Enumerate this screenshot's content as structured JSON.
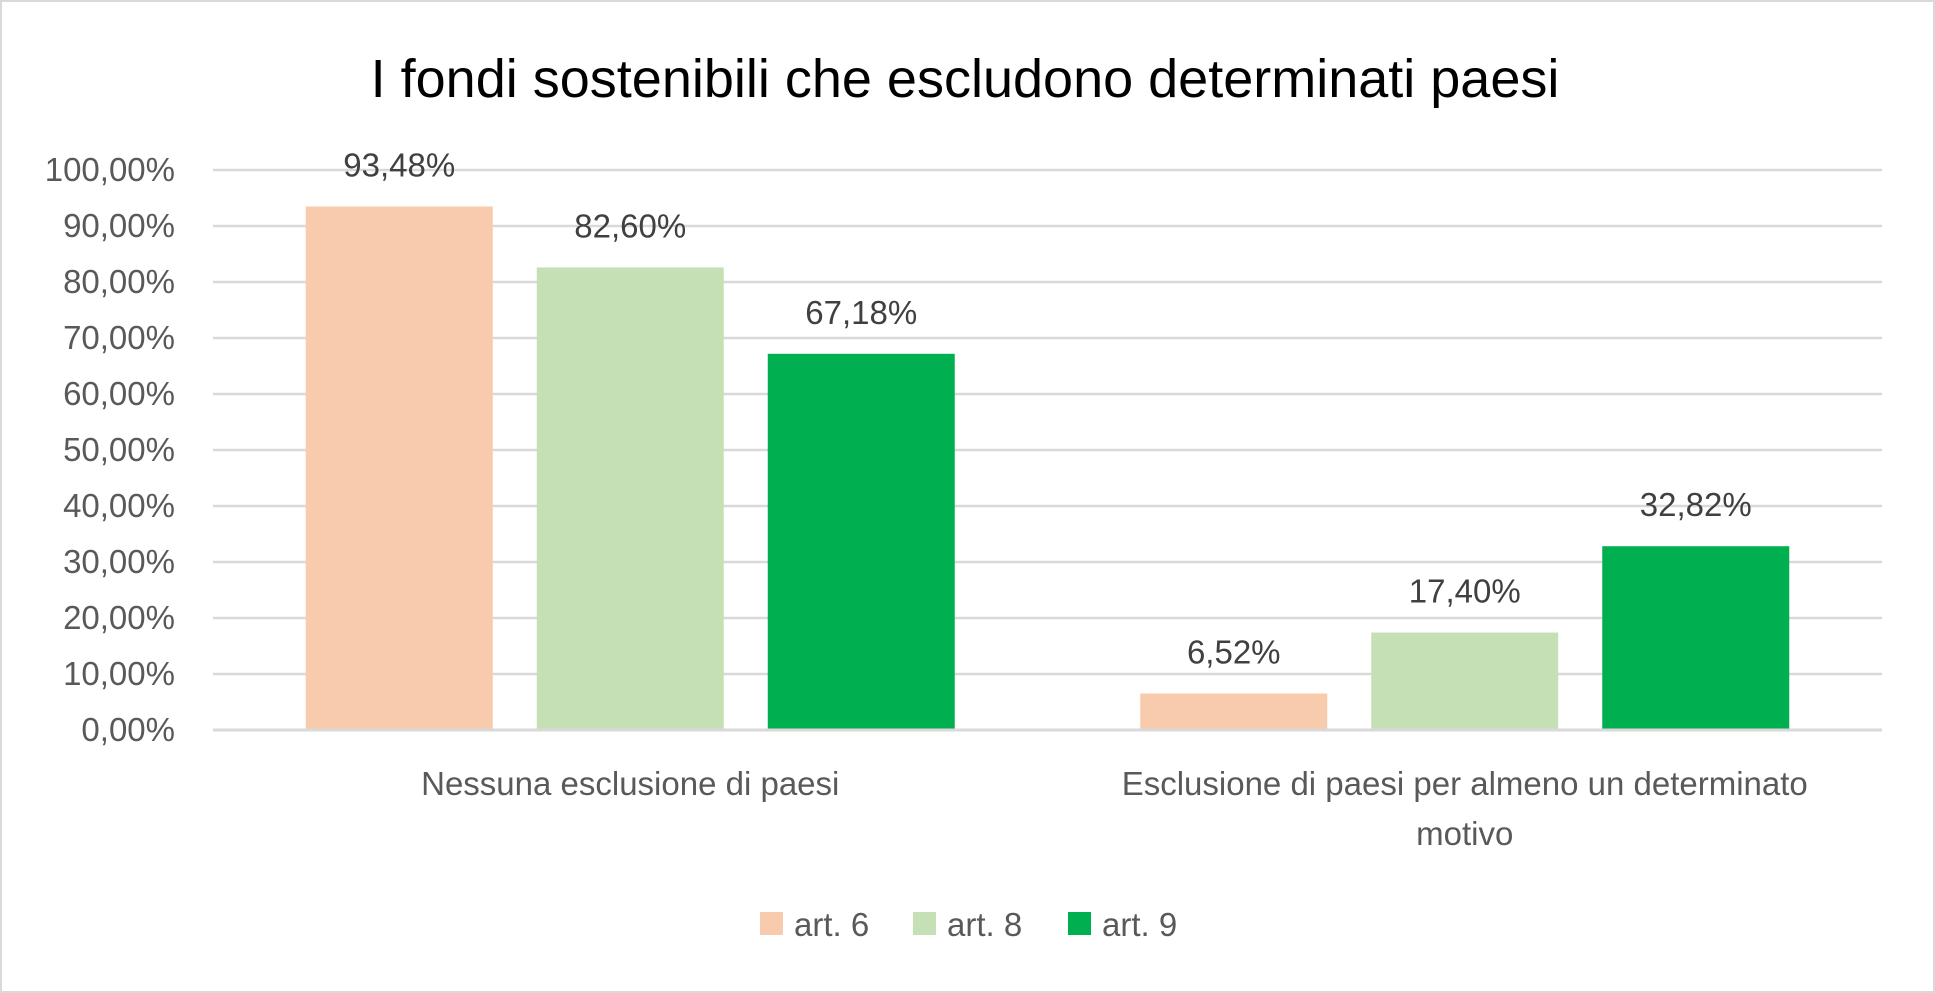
{
  "chart_data": {
    "type": "bar",
    "title": "I fondi sostenibili che escludono determinati paesi",
    "xlabel": "",
    "ylabel": "",
    "categories": [
      [
        "Nessuna esclusione di paesi"
      ],
      [
        "Esclusione di paesi per almeno un determinato",
        "motivo"
      ]
    ],
    "series": [
      {
        "name": "art. 6",
        "color": "#F8CBAD",
        "values": [
          93.48,
          6.52
        ],
        "labels": [
          "93,48%",
          "6,52%"
        ]
      },
      {
        "name": "art. 8",
        "color": "#C5E0B4",
        "values": [
          82.6,
          17.4
        ],
        "labels": [
          "82,60%",
          "17,40%"
        ]
      },
      {
        "name": "art. 9",
        "color": "#00B050",
        "values": [
          67.18,
          32.82
        ],
        "labels": [
          "67,18%",
          "32,82%"
        ]
      }
    ],
    "ylim": [
      0,
      100
    ],
    "yticks": [
      {
        "value": 0,
        "label": "0,00%"
      },
      {
        "value": 10,
        "label": "10,00%"
      },
      {
        "value": 20,
        "label": "20,00%"
      },
      {
        "value": 30,
        "label": "30,00%"
      },
      {
        "value": 40,
        "label": "40,00%"
      },
      {
        "value": 50,
        "label": "50,00%"
      },
      {
        "value": 60,
        "label": "60,00%"
      },
      {
        "value": 70,
        "label": "70,00%"
      },
      {
        "value": 80,
        "label": "80,00%"
      },
      {
        "value": 90,
        "label": "90,00%"
      },
      {
        "value": 100,
        "label": "100,00%"
      }
    ],
    "grid": true,
    "legend_position": "bottom"
  }
}
